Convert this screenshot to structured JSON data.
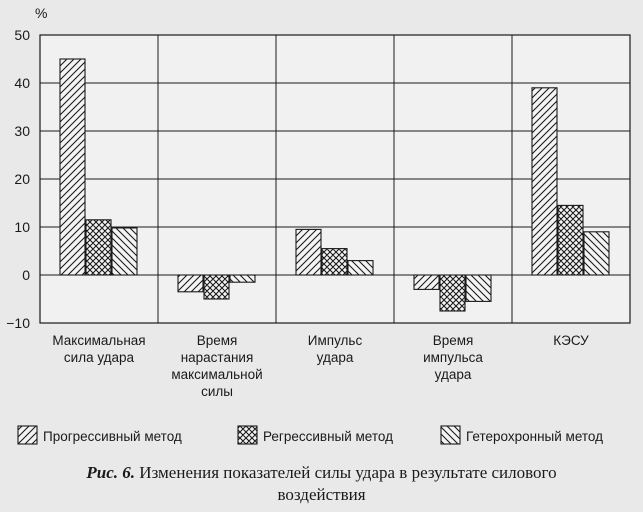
{
  "chart_data": {
    "type": "bar",
    "ylabel": "%",
    "ylim": [
      -10,
      50
    ],
    "yticks": [
      50,
      40,
      30,
      20,
      10,
      0,
      -10
    ],
    "grid": true,
    "legend_position": "bottom",
    "categories": [
      [
        "Максимальная",
        "сила удара"
      ],
      [
        "Время",
        "нарастания",
        "максимальной",
        "силы"
      ],
      [
        "Импульс",
        "удара"
      ],
      [
        "Время",
        "импульса",
        "удара"
      ],
      [
        "КЭСУ"
      ]
    ],
    "series": [
      {
        "name": "Прогрессивный метод",
        "pattern": "diagonal-hatch",
        "values": [
          45.0,
          -3.5,
          9.5,
          -3.0,
          39.0
        ]
      },
      {
        "name": "Регрессивный метод",
        "pattern": "cross-hatch",
        "values": [
          11.5,
          -5.0,
          5.5,
          -7.5,
          14.5
        ]
      },
      {
        "name": "Гетерохронный метод",
        "pattern": "back-diagonal-hatch",
        "values": [
          9.8,
          -1.5,
          3.0,
          -5.5,
          9.0
        ]
      }
    ]
  },
  "caption": {
    "figure_label": "Рис. 6.",
    "text_line1": "Изменения показателей силы удара в результате силового",
    "text_line2": "воздействия"
  },
  "colors": {
    "ink": "#1a1a1a",
    "background": "#e9e9e9",
    "plot_background": "#f1f1f1"
  }
}
